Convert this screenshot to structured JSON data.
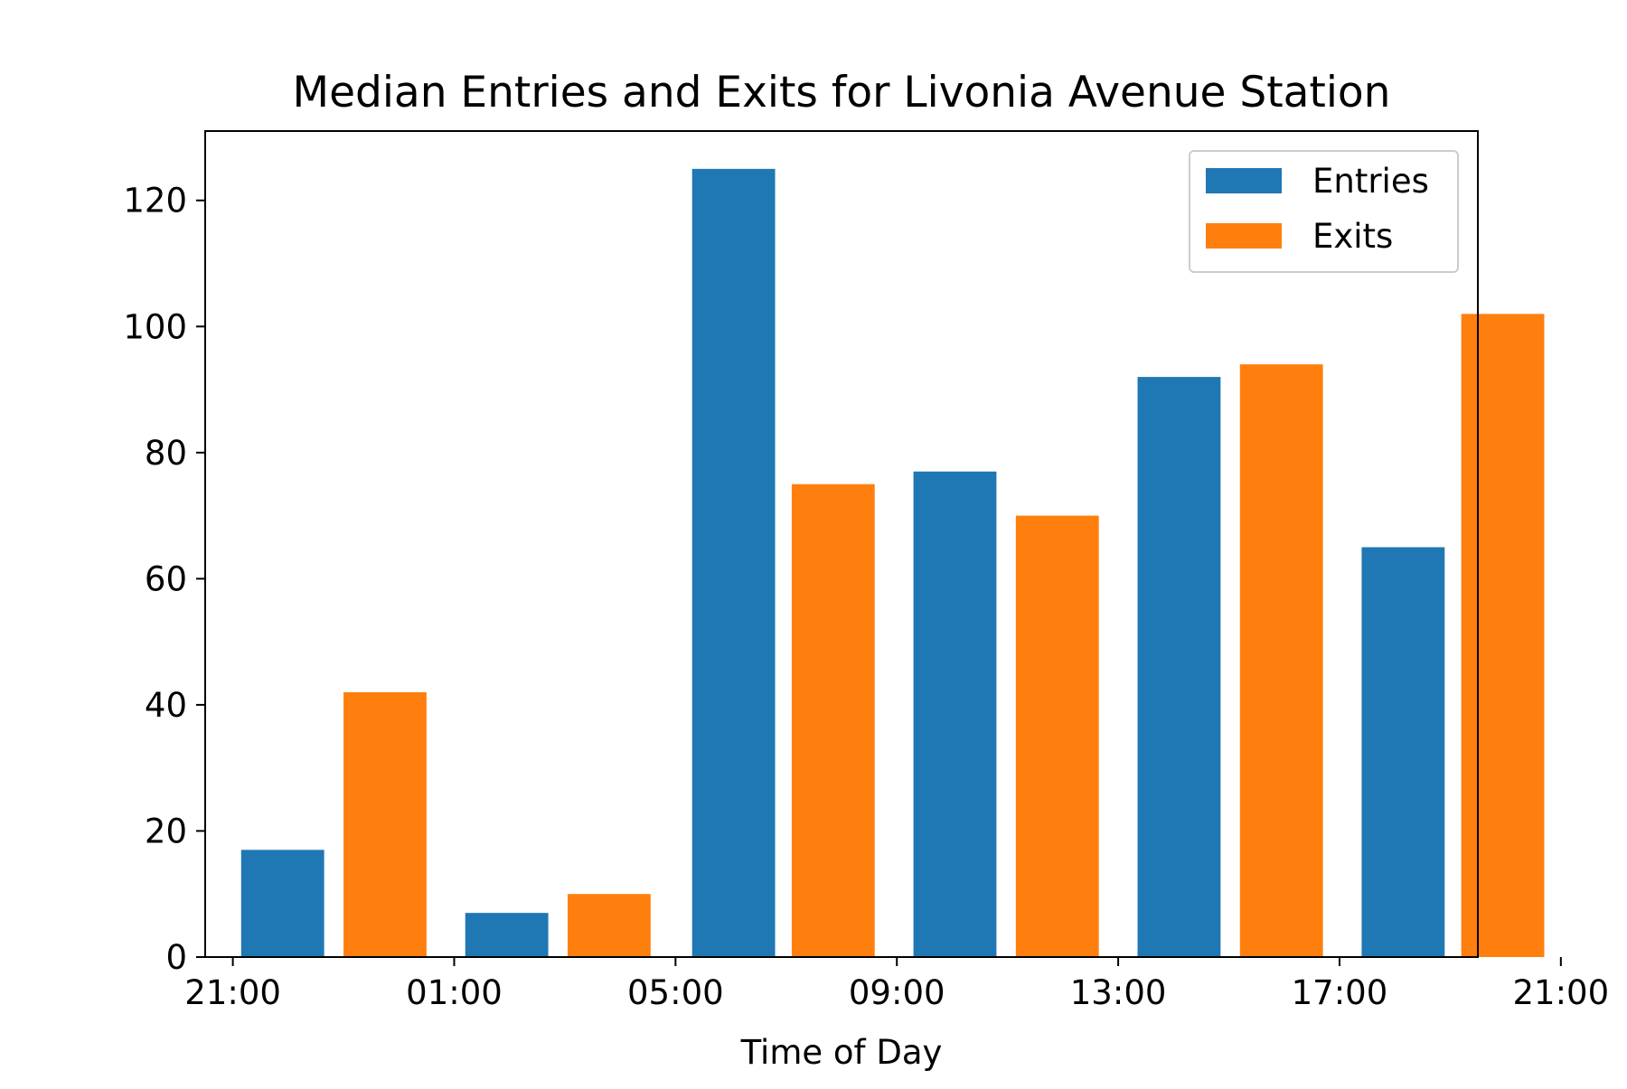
{
  "chart_data": {
    "type": "bar",
    "title": "Median Entries and Exits for Livonia Avenue Station",
    "xlabel": "Time of Day",
    "ylabel": "",
    "xlim": [
      -1.0,
      45.0
    ],
    "ylim": [
      0,
      131
    ],
    "x_ticks": [
      0,
      8,
      16,
      24,
      32,
      40,
      48
    ],
    "x_tick_labels": [
      "21:00",
      "01:00",
      "05:00",
      "09:00",
      "13:00",
      "17:00",
      "21:00"
    ],
    "y_ticks": [
      0,
      20,
      40,
      60,
      80,
      100,
      120
    ],
    "y_tick_labels": [
      "0",
      "20",
      "40",
      "60",
      "80",
      "100",
      "120"
    ],
    "bar_width": 3.0,
    "grid": false,
    "legend_position": "top-right",
    "series": [
      {
        "name": "Entries",
        "color": "#1f77b4",
        "x": [
          1.8,
          9.9,
          18.1,
          26.1,
          34.2,
          42.3
        ],
        "values": [
          17,
          7,
          125,
          77,
          92,
          65
        ]
      },
      {
        "name": "Exits",
        "color": "#ff7f0e",
        "x": [
          5.5,
          13.6,
          21.7,
          29.8,
          37.9,
          45.9
        ],
        "values": [
          42,
          10,
          75,
          70,
          94,
          102
        ]
      }
    ]
  }
}
